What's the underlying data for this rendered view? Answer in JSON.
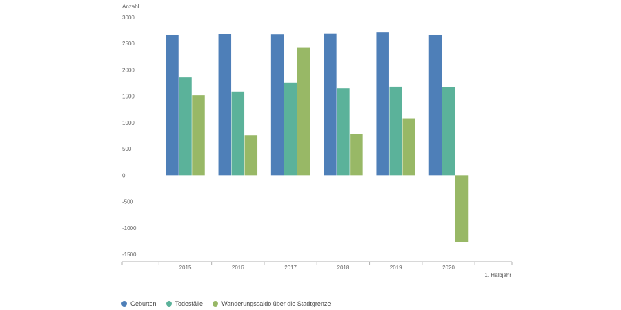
{
  "chart_data": {
    "type": "bar",
    "ylabel": "Anzahl",
    "xlabel": "1. Halbjahr",
    "categories": [
      "2015",
      "2016",
      "2017",
      "2018",
      "2019",
      "2020"
    ],
    "ylim": [
      -1500,
      3000
    ],
    "yticks": [
      "3000",
      "2500",
      "2000",
      "1500",
      "1000",
      "500",
      "0",
      "-500",
      "-1000",
      "-1500"
    ],
    "grid": false,
    "legend_position": "bottom-left",
    "series": [
      {
        "name": "Geburten",
        "color": "#4e7fb8",
        "values": [
          2660,
          2680,
          2670,
          2690,
          2710,
          2660
        ]
      },
      {
        "name": "Todesfälle",
        "color": "#5bb29a",
        "values": [
          1860,
          1590,
          1760,
          1650,
          1680,
          1670
        ]
      },
      {
        "name": "Wanderungssaldo über die Stadtgrenze",
        "color": "#98b866",
        "values": [
          1520,
          760,
          2430,
          780,
          1070,
          -1270
        ]
      }
    ]
  }
}
